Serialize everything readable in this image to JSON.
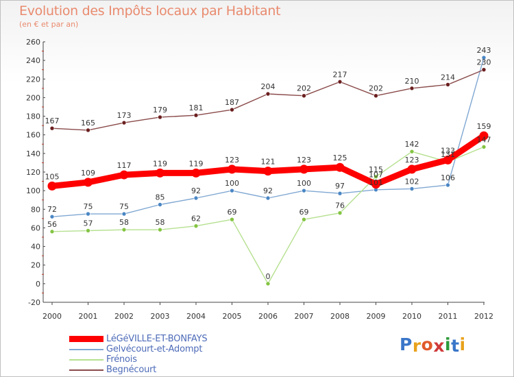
{
  "header": {
    "title": "Evolution des Impôts locaux par Habitant",
    "subtitle": "(en € et par an)"
  },
  "brand": {
    "text": "Proxiti",
    "letter_colors": [
      "#3a76c9",
      "#e8a21c",
      "#e05a2a",
      "#cf3a3a",
      "#2c9a3a",
      "#3a76c9",
      "#e8a21c"
    ]
  },
  "chart_data": {
    "type": "line",
    "title": "Evolution des Impôts locaux par Habitant",
    "subtitle": "(en € et par an)",
    "xlabel": "",
    "ylabel": "",
    "x": [
      "2000",
      "2001",
      "2002",
      "2003",
      "2004",
      "2005",
      "2006",
      "2007",
      "2008",
      "2009",
      "2010",
      "2011",
      "2012"
    ],
    "ylim": [
      -20,
      260
    ],
    "yticks": [
      -20,
      0,
      20,
      40,
      60,
      80,
      100,
      120,
      140,
      160,
      180,
      200,
      220,
      240,
      260
    ],
    "grid": false,
    "legend_position": "bottom-left",
    "series": [
      {
        "name": "LéGéVILLE-ET-BONFAYS",
        "color": "#ff0000",
        "marker_color": "#ff0000",
        "emphasis": true,
        "values": [
          105,
          109,
          117,
          119,
          119,
          123,
          121,
          123,
          125,
          107,
          123,
          133,
          159
        ]
      },
      {
        "name": "Gelvécourt-et-Adompt",
        "color": "#7fa7d2",
        "marker_color": "#4a86c4",
        "emphasis": false,
        "values": [
          72,
          75,
          75,
          85,
          92,
          100,
          92,
          100,
          97,
          101,
          102,
          106,
          243
        ]
      },
      {
        "name": "Frénois",
        "color": "#b5e08f",
        "marker_color": "#84c442",
        "emphasis": false,
        "values": [
          56,
          57,
          58,
          58,
          62,
          69,
          0,
          69,
          76,
          115,
          142,
          131,
          147
        ]
      },
      {
        "name": "Begnécourt",
        "color": "#8a4a4a",
        "marker_color": "#6b1f1f",
        "emphasis": false,
        "values": [
          167,
          165,
          173,
          179,
          181,
          187,
          204,
          202,
          217,
          202,
          210,
          214,
          230
        ]
      }
    ]
  }
}
